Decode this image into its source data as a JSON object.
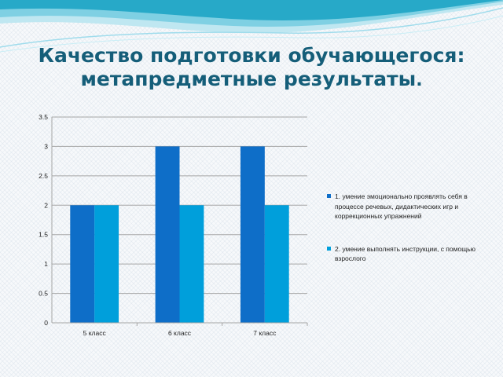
{
  "slide": {
    "title_line1": "Качество подготовки обучающегося:",
    "title_line2": "метапредметные результаты",
    "title_suffix": "."
  },
  "colors": {
    "title": "#155e79",
    "swoosh": [
      "#27a9c8",
      "#7fd0e3",
      "#bfe7f1"
    ],
    "series": [
      "#0e6ec8",
      "#009fdb"
    ],
    "grid": "#a6a6a6"
  },
  "chart_data": {
    "type": "bar",
    "categories": [
      "5 класс",
      "6 класс",
      "7 класс"
    ],
    "series": [
      {
        "name": " 1. умение эмоционально проявлять себя в процессе речевых, дидактических игр и коррекционных упражнений",
        "values": [
          2,
          3,
          3
        ]
      },
      {
        "name": "2. умение выполнять инструкции, с помощью взрослого",
        "values": [
          2,
          2,
          2
        ]
      }
    ],
    "yticks": [
      "0",
      "0.5",
      "1",
      "1.5",
      "2",
      "2.5",
      "3",
      "3.5"
    ],
    "ylim": [
      0,
      3.5
    ],
    "grid": true,
    "legend_position": "right"
  }
}
